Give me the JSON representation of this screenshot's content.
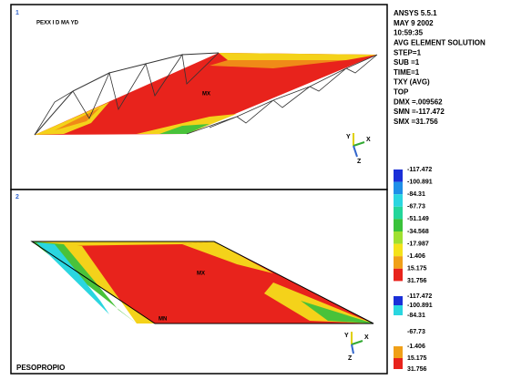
{
  "viewport_1": {
    "number": "1",
    "title": "PEXX I D MA YD"
  },
  "viewport_2": {
    "number": "2",
    "label": "PESOPROPIO"
  },
  "triad": {
    "x": "X",
    "y": "Y",
    "z": "Z"
  },
  "info": [
    "ANSYS 5.5.1",
    "MAY 9 2002",
    "10:59:35",
    "AVG ELEMENT SOLUTION",
    "STEP=1",
    "SUB =1",
    "TIME=1",
    "TXY     (AVG)",
    "TOP",
    "DMX =.009562",
    "SMN =-117.472",
    "SMX =31.756"
  ],
  "legend_1": [
    "-117.472",
    "-100.891",
    "-84.31",
    "-67.73",
    "-51.149",
    "-34.568",
    "-17.987",
    "-1.406",
    "15.175",
    "31.756"
  ],
  "legend_2": [
    "-117.472",
    "-100.891",
    "-84.31",
    "-67.73",
    "-1.406",
    "15.175",
    "31.756"
  ]
}
